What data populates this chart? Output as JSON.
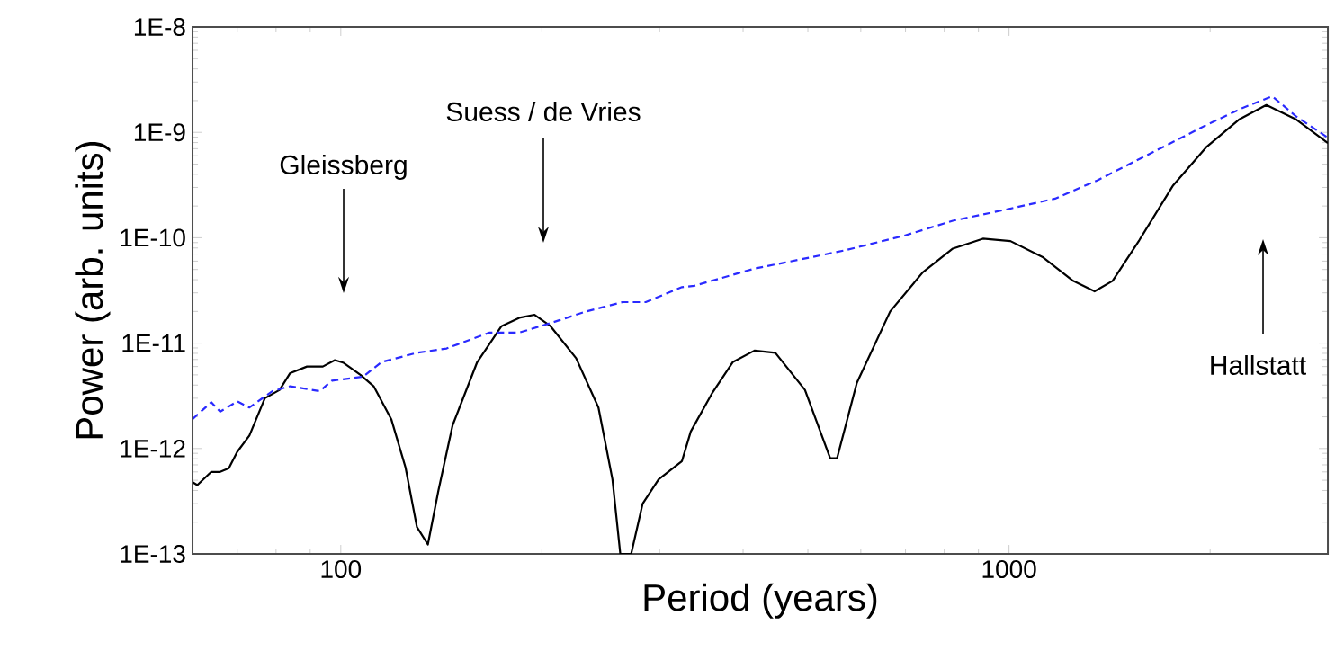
{
  "chart_data": {
    "type": "line",
    "xlabel": "Period (years)",
    "ylabel": "Power (arb. units)",
    "log": "xy",
    "xlim": [
      60,
      3000
    ],
    "ylim": [
      1e-13,
      1e-08
    ],
    "xticks": [
      100,
      1000
    ],
    "yticks": [
      {
        "value": 1e-13,
        "label": "1E-13"
      },
      {
        "value": 1e-12,
        "label": "1E-12"
      },
      {
        "value": 1e-11,
        "label": "1E-11"
      },
      {
        "value": 1e-10,
        "label": "1E-10"
      },
      {
        "value": 1e-09,
        "label": "1E-9"
      },
      {
        "value": 1e-08,
        "label": "1E-8"
      }
    ],
    "series": [
      {
        "color": "#000000",
        "line_style": "solid",
        "x": [
          60,
          61,
          64,
          66,
          68,
          70,
          73,
          77,
          81,
          84,
          89,
          94,
          98,
          101,
          107,
          112,
          119,
          125,
          130,
          135,
          140,
          147,
          160,
          174,
          185,
          195,
          206,
          225,
          243,
          255,
          262,
          272,
          283,
          299,
          324,
          334,
          360,
          386,
          416,
          447,
          495,
          540,
          553,
          592,
          664,
          743,
          824,
          914,
          1005,
          1125,
          1247,
          1343,
          1429,
          1567,
          1758,
          1972,
          2208,
          2427,
          2692,
          3000
        ],
        "values": [
          4.8e-13,
          4.5e-13,
          6e-13,
          6e-13,
          6.5e-13,
          9.3e-13,
          1.33e-12,
          3e-12,
          3.6e-12,
          5.2e-12,
          6e-12,
          6e-12,
          6.9e-12,
          6.5e-12,
          5e-12,
          3.9e-12,
          1.9e-12,
          6.6e-13,
          1.8e-13,
          1.23e-13,
          4e-13,
          1.66e-12,
          6.6e-12,
          1.45e-11,
          1.74e-11,
          1.86e-11,
          1.45e-11,
          7.2e-12,
          2.45e-12,
          5.1e-13,
          1e-13,
          1e-13,
          3e-13,
          5.1e-13,
          7.6e-13,
          1.45e-12,
          3.4e-12,
          6.6e-12,
          8.5e-12,
          8.1e-12,
          3.6e-12,
          8.1e-13,
          8.1e-13,
          4.2e-12,
          2e-11,
          4.7e-11,
          7.9e-11,
          9.8e-11,
          9.3e-11,
          6.5e-11,
          3.9e-11,
          3.1e-11,
          3.9e-11,
          9.5e-11,
          3.1e-10,
          7.2e-10,
          1.32e-09,
          1.82e-09,
          1.32e-09,
          7.9e-10
        ]
      },
      {
        "color": "#2a2aff",
        "line_style": "dashed",
        "x": [
          60,
          64,
          66,
          70,
          73,
          79,
          84,
          93,
          97,
          108,
          115,
          130,
          144,
          167,
          185,
          206,
          233,
          264,
          286,
          324,
          338,
          416,
          461,
          568,
          698,
          824,
          993,
          1172,
          1355,
          1603,
          1972,
          2234,
          2477,
          2692,
          3000
        ],
        "values": [
          1.9e-12,
          2.75e-12,
          2.24e-12,
          2.8e-12,
          2.45e-12,
          3.5e-12,
          3.9e-12,
          3.5e-12,
          4.4e-12,
          4.8e-12,
          6.6e-12,
          8.1e-12,
          8.9e-12,
          1.26e-11,
          1.26e-11,
          1.55e-11,
          2e-11,
          2.45e-11,
          2.45e-11,
          3.4e-11,
          3.5e-11,
          5.1e-11,
          5.8e-11,
          7.6e-11,
          1.05e-10,
          1.45e-10,
          1.86e-10,
          2.35e-10,
          3.5e-10,
          6e-10,
          1.17e-09,
          1.7e-09,
          2.2e-09,
          1.41e-09,
          8.9e-10
        ]
      }
    ],
    "annotations": [
      "Gleissberg",
      "Suess / de Vries",
      "Hallstatt"
    ]
  }
}
